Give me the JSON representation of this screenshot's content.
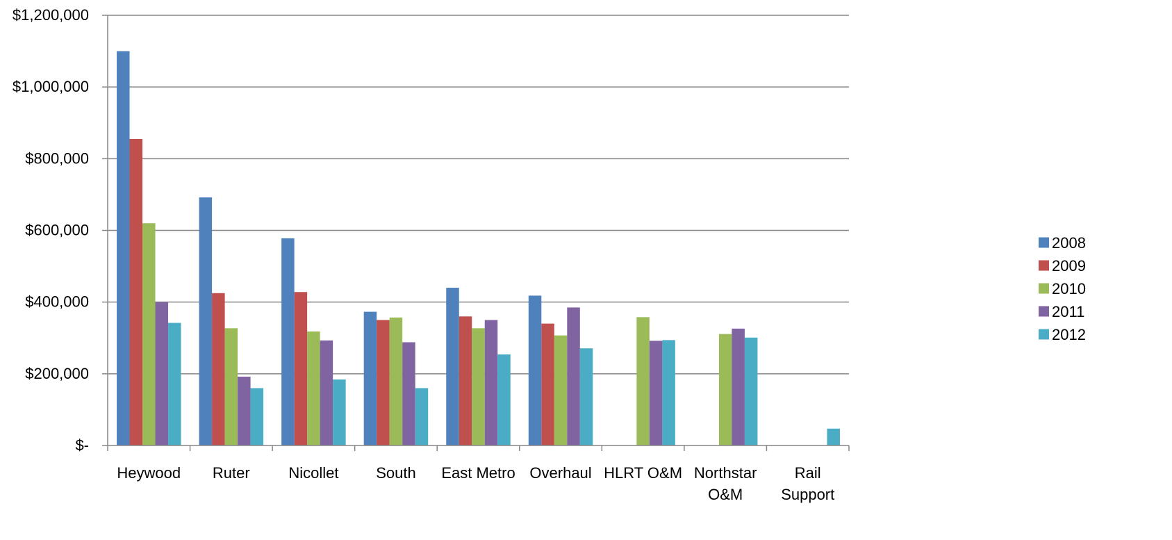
{
  "chart_data": {
    "type": "bar",
    "title": "",
    "xlabel": "",
    "ylabel": "",
    "categories": [
      [
        "Heywood"
      ],
      [
        "Ruter"
      ],
      [
        "Nicollet"
      ],
      [
        "South"
      ],
      [
        "East Metro"
      ],
      [
        "Overhaul"
      ],
      [
        "HLRT O&M"
      ],
      [
        "Northstar",
        "O&M"
      ],
      [
        "Rail",
        "Support"
      ]
    ],
    "series": [
      {
        "name": "2008",
        "color": "#4F81BD",
        "values": [
          1100000,
          692000,
          578000,
          373000,
          440000,
          418000,
          null,
          null,
          null
        ]
      },
      {
        "name": "2009",
        "color": "#C0504D",
        "values": [
          855000,
          425000,
          428000,
          350000,
          360000,
          340000,
          null,
          null,
          null
        ]
      },
      {
        "name": "2010",
        "color": "#9BBB59",
        "values": [
          620000,
          327000,
          318000,
          357000,
          327000,
          307000,
          358000,
          311000,
          null
        ]
      },
      {
        "name": "2011",
        "color": "#8064A2",
        "values": [
          400000,
          192000,
          293000,
          288000,
          350000,
          385000,
          292000,
          326000,
          null
        ]
      },
      {
        "name": "2012",
        "color": "#4BACC6",
        "values": [
          342000,
          160000,
          184000,
          160000,
          254000,
          271000,
          294000,
          301000,
          47000
        ]
      }
    ],
    "yticks": [
      0,
      200000,
      400000,
      600000,
      800000,
      1000000,
      1200000
    ],
    "ytick_labels": [
      "$-",
      "$200,000",
      "$400,000",
      "$600,000",
      "$800,000",
      "$1,000,000",
      "$1,200,000"
    ],
    "ylim": [
      0,
      1200000
    ],
    "grid": true,
    "legend_position": "right"
  }
}
